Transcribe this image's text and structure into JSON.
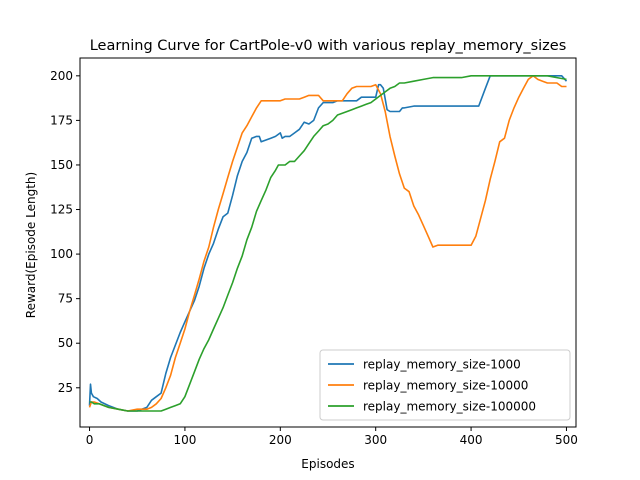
{
  "chart_data": {
    "type": "line",
    "title": "Learning Curve for CartPole-v0 with various replay_memory_sizes",
    "xlabel": "Episodes",
    "ylabel": "Reward(Episode Length)",
    "xlim": [
      -10,
      510
    ],
    "ylim": [
      3,
      210
    ],
    "xticks": [
      0,
      100,
      200,
      300,
      400,
      500
    ],
    "yticks": [
      25,
      50,
      75,
      100,
      125,
      150,
      175,
      200
    ],
    "grid": false,
    "legend_position": "lower-right",
    "series": [
      {
        "name": "replay_memory_size-1000",
        "color": "#1f77b4",
        "points": [
          [
            0,
            15
          ],
          [
            1,
            27
          ],
          [
            2,
            22
          ],
          [
            4,
            20
          ],
          [
            8,
            19
          ],
          [
            12,
            17
          ],
          [
            20,
            15
          ],
          [
            30,
            13
          ],
          [
            40,
            12
          ],
          [
            50,
            12
          ],
          [
            60,
            14
          ],
          [
            65,
            18
          ],
          [
            70,
            20
          ],
          [
            75,
            22
          ],
          [
            80,
            33
          ],
          [
            85,
            42
          ],
          [
            90,
            49
          ],
          [
            95,
            56
          ],
          [
            100,
            62
          ],
          [
            105,
            68
          ],
          [
            110,
            74
          ],
          [
            115,
            82
          ],
          [
            120,
            92
          ],
          [
            125,
            100
          ],
          [
            130,
            106
          ],
          [
            135,
            114
          ],
          [
            140,
            121
          ],
          [
            145,
            123
          ],
          [
            150,
            133
          ],
          [
            155,
            144
          ],
          [
            160,
            152
          ],
          [
            165,
            157
          ],
          [
            170,
            165
          ],
          [
            175,
            166
          ],
          [
            178,
            166
          ],
          [
            180,
            163
          ],
          [
            185,
            164
          ],
          [
            190,
            165
          ],
          [
            195,
            166
          ],
          [
            200,
            168
          ],
          [
            202,
            165
          ],
          [
            205,
            166
          ],
          [
            210,
            166
          ],
          [
            215,
            168
          ],
          [
            220,
            170
          ],
          [
            225,
            174
          ],
          [
            230,
            173
          ],
          [
            235,
            175
          ],
          [
            240,
            182
          ],
          [
            245,
            185
          ],
          [
            250,
            185
          ],
          [
            255,
            185
          ],
          [
            260,
            186
          ],
          [
            270,
            186
          ],
          [
            280,
            186
          ],
          [
            285,
            188
          ],
          [
            295,
            188
          ],
          [
            300,
            188
          ],
          [
            303,
            195
          ],
          [
            305,
            195
          ],
          [
            308,
            193
          ],
          [
            312,
            181
          ],
          [
            315,
            180
          ],
          [
            320,
            180
          ],
          [
            325,
            180
          ],
          [
            328,
            182
          ],
          [
            330,
            182
          ],
          [
            340,
            183
          ],
          [
            350,
            183
          ],
          [
            360,
            183
          ],
          [
            370,
            183
          ],
          [
            380,
            183
          ],
          [
            390,
            183
          ],
          [
            400,
            183
          ],
          [
            408,
            183
          ],
          [
            415,
            193
          ],
          [
            420,
            200
          ],
          [
            430,
            200
          ],
          [
            440,
            200
          ],
          [
            450,
            200
          ],
          [
            460,
            200
          ],
          [
            470,
            200
          ],
          [
            480,
            200
          ],
          [
            490,
            200
          ],
          [
            495,
            200
          ],
          [
            500,
            197
          ]
        ]
      },
      {
        "name": "replay_memory_size-10000",
        "color": "#ff7f0e",
        "points": [
          [
            0,
            14
          ],
          [
            2,
            17
          ],
          [
            5,
            17
          ],
          [
            10,
            16
          ],
          [
            20,
            14
          ],
          [
            30,
            13
          ],
          [
            40,
            12
          ],
          [
            50,
            13
          ],
          [
            60,
            13
          ],
          [
            65,
            14
          ],
          [
            70,
            16
          ],
          [
            75,
            19
          ],
          [
            80,
            25
          ],
          [
            85,
            32
          ],
          [
            90,
            42
          ],
          [
            95,
            50
          ],
          [
            100,
            58
          ],
          [
            105,
            68
          ],
          [
            110,
            77
          ],
          [
            115,
            86
          ],
          [
            120,
            96
          ],
          [
            125,
            104
          ],
          [
            130,
            115
          ],
          [
            135,
            125
          ],
          [
            140,
            134
          ],
          [
            145,
            143
          ],
          [
            150,
            152
          ],
          [
            155,
            160
          ],
          [
            160,
            168
          ],
          [
            165,
            172
          ],
          [
            170,
            177
          ],
          [
            175,
            182
          ],
          [
            180,
            186
          ],
          [
            185,
            186
          ],
          [
            190,
            186
          ],
          [
            195,
            186
          ],
          [
            200,
            186
          ],
          [
            205,
            187
          ],
          [
            210,
            187
          ],
          [
            220,
            187
          ],
          [
            225,
            188
          ],
          [
            230,
            189
          ],
          [
            240,
            189
          ],
          [
            245,
            186
          ],
          [
            250,
            186
          ],
          [
            255,
            186
          ],
          [
            260,
            186
          ],
          [
            265,
            186
          ],
          [
            270,
            190
          ],
          [
            275,
            193
          ],
          [
            280,
            194
          ],
          [
            285,
            194
          ],
          [
            290,
            194
          ],
          [
            295,
            194
          ],
          [
            300,
            195
          ],
          [
            305,
            190
          ],
          [
            310,
            180
          ],
          [
            315,
            166
          ],
          [
            320,
            155
          ],
          [
            325,
            145
          ],
          [
            330,
            137
          ],
          [
            335,
            135
          ],
          [
            340,
            127
          ],
          [
            345,
            122
          ],
          [
            350,
            116
          ],
          [
            355,
            110
          ],
          [
            360,
            104
          ],
          [
            365,
            105
          ],
          [
            370,
            105
          ],
          [
            375,
            105
          ],
          [
            380,
            105
          ],
          [
            390,
            105
          ],
          [
            400,
            105
          ],
          [
            405,
            110
          ],
          [
            410,
            120
          ],
          [
            415,
            130
          ],
          [
            420,
            142
          ],
          [
            425,
            152
          ],
          [
            430,
            163
          ],
          [
            435,
            165
          ],
          [
            440,
            175
          ],
          [
            445,
            182
          ],
          [
            450,
            188
          ],
          [
            455,
            193
          ],
          [
            460,
            198
          ],
          [
            465,
            200
          ],
          [
            470,
            198
          ],
          [
            475,
            197
          ],
          [
            480,
            196
          ],
          [
            485,
            196
          ],
          [
            490,
            196
          ],
          [
            495,
            194
          ],
          [
            500,
            194
          ]
        ]
      },
      {
        "name": "replay_memory_size-100000",
        "color": "#2ca02c",
        "points": [
          [
            0,
            17
          ],
          [
            2,
            17
          ],
          [
            5,
            16
          ],
          [
            10,
            16
          ],
          [
            20,
            14
          ],
          [
            30,
            13
          ],
          [
            40,
            12
          ],
          [
            50,
            12
          ],
          [
            60,
            12
          ],
          [
            70,
            12
          ],
          [
            75,
            12
          ],
          [
            80,
            13
          ],
          [
            85,
            14
          ],
          [
            90,
            15
          ],
          [
            95,
            16
          ],
          [
            100,
            20
          ],
          [
            105,
            27
          ],
          [
            110,
            34
          ],
          [
            115,
            41
          ],
          [
            120,
            47
          ],
          [
            125,
            52
          ],
          [
            130,
            58
          ],
          [
            135,
            64
          ],
          [
            140,
            70
          ],
          [
            145,
            77
          ],
          [
            150,
            84
          ],
          [
            155,
            92
          ],
          [
            160,
            99
          ],
          [
            165,
            108
          ],
          [
            170,
            115
          ],
          [
            175,
            124
          ],
          [
            180,
            130
          ],
          [
            185,
            136
          ],
          [
            190,
            143
          ],
          [
            195,
            147
          ],
          [
            198,
            150
          ],
          [
            200,
            150
          ],
          [
            205,
            150
          ],
          [
            210,
            152
          ],
          [
            215,
            152
          ],
          [
            220,
            155
          ],
          [
            225,
            158
          ],
          [
            230,
            162
          ],
          [
            235,
            166
          ],
          [
            240,
            169
          ],
          [
            245,
            172
          ],
          [
            250,
            173
          ],
          [
            255,
            175
          ],
          [
            260,
            178
          ],
          [
            265,
            179
          ],
          [
            270,
            180
          ],
          [
            275,
            181
          ],
          [
            280,
            182
          ],
          [
            285,
            183
          ],
          [
            290,
            184
          ],
          [
            295,
            185
          ],
          [
            300,
            187
          ],
          [
            305,
            189
          ],
          [
            310,
            191
          ],
          [
            315,
            193
          ],
          [
            320,
            194
          ],
          [
            325,
            196
          ],
          [
            330,
            196
          ],
          [
            340,
            197
          ],
          [
            350,
            198
          ],
          [
            360,
            199
          ],
          [
            370,
            199
          ],
          [
            380,
            199
          ],
          [
            390,
            199
          ],
          [
            400,
            200
          ],
          [
            410,
            200
          ],
          [
            420,
            200
          ],
          [
            430,
            200
          ],
          [
            440,
            200
          ],
          [
            450,
            200
          ],
          [
            460,
            200
          ],
          [
            470,
            200
          ],
          [
            480,
            200
          ],
          [
            490,
            199
          ],
          [
            500,
            198
          ]
        ]
      }
    ]
  }
}
